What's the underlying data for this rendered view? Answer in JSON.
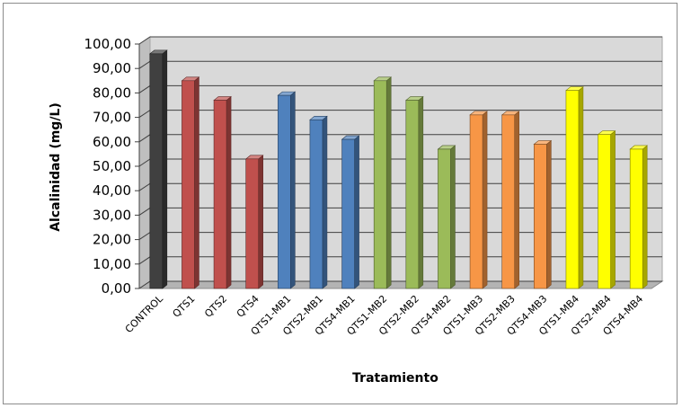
{
  "chart_data": {
    "type": "bar",
    "xlabel": "Tratamiento",
    "ylabel": "Alcalinidad  (mg/L)",
    "ylim": [
      0,
      100
    ],
    "ytick_step": 10,
    "ytick_labels": [
      "0,00",
      "10,00",
      "20,00",
      "30,00",
      "40,00",
      "50,00",
      "60,00",
      "70,00",
      "80,00",
      "90,00",
      "100,00"
    ],
    "grid": true,
    "categories": [
      "CONTROL",
      "QTS1",
      "QTS2",
      "QTS4",
      "QTS1-MB1",
      "QTS2-MB1",
      "QTS4-MB1",
      "QTS1-MB2",
      "QTS2-MB2",
      "QTS4-MB2",
      "QTS1-MB3",
      "QTS2-MB3",
      "QTS4-MB3",
      "QTS1-MB4",
      "QTS2-MB4",
      "QTS4-MB4"
    ],
    "values": [
      96,
      85,
      77,
      53,
      79,
      69,
      61,
      85,
      77,
      57,
      71,
      71,
      59,
      81,
      63,
      57
    ],
    "colors": [
      "#404040",
      "#c0504d",
      "#c0504d",
      "#c0504d",
      "#4f81bd",
      "#4f81bd",
      "#4f81bd",
      "#9bbb59",
      "#9bbb59",
      "#9bbb59",
      "#f79646",
      "#f79646",
      "#f79646",
      "#ffff00",
      "#ffff00",
      "#ffff00"
    ]
  }
}
